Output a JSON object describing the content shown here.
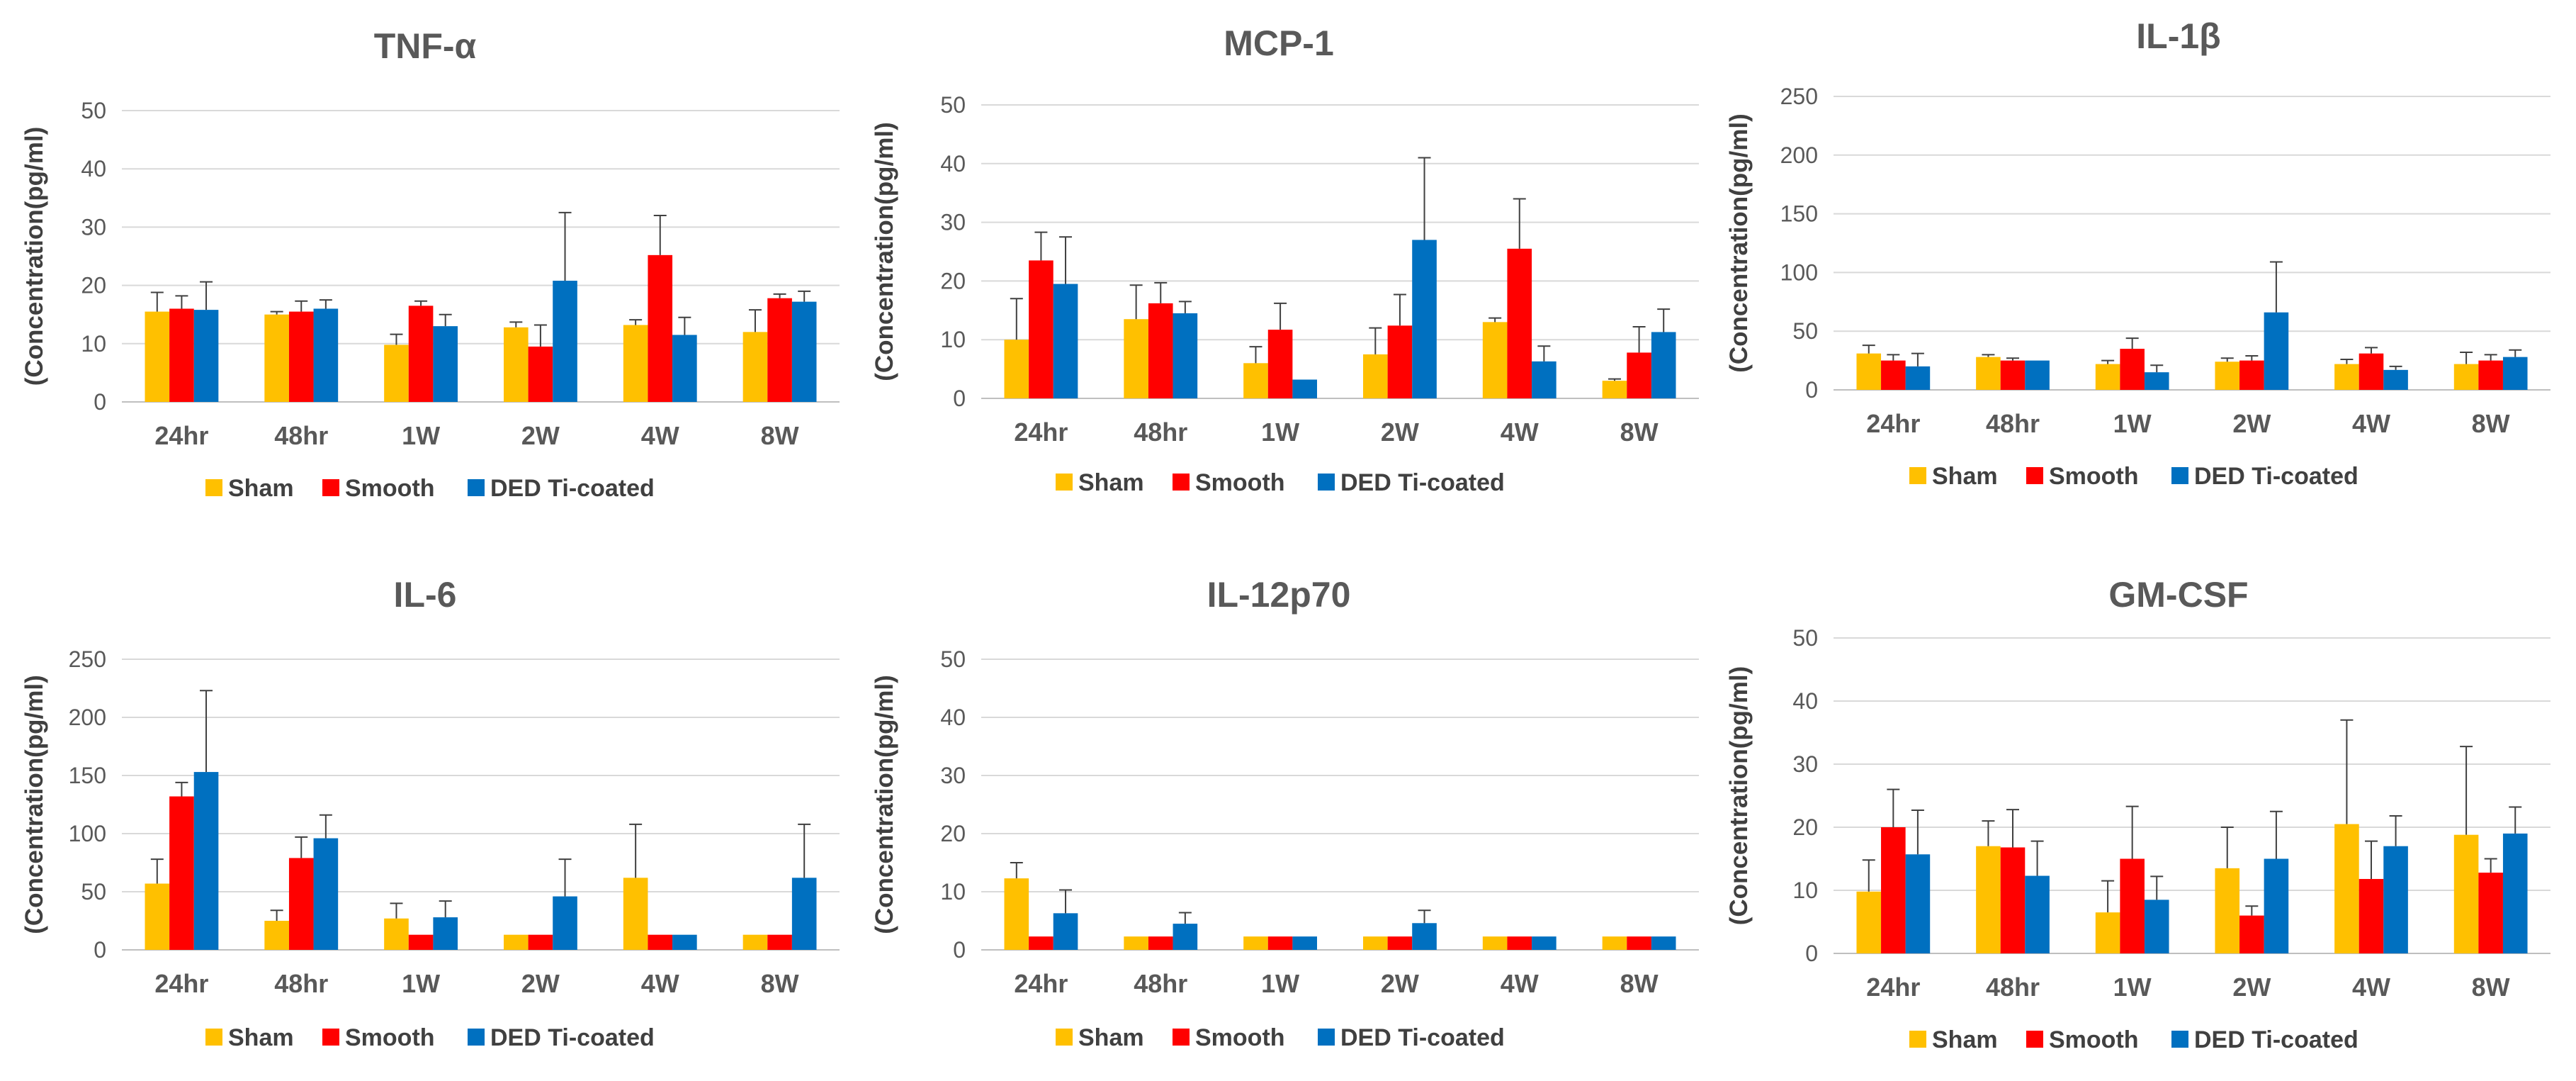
{
  "chart_data": [
    {
      "type": "bar",
      "title": "TNF-α",
      "ylabel": "(Concentration(pg/ml)",
      "xlabel": "",
      "ylim": [
        0,
        50
      ],
      "yticks": [
        0,
        10,
        20,
        30,
        40,
        50
      ],
      "grid": true,
      "legend_position": "bottom",
      "categories": [
        "24hr",
        "48hr",
        "1W",
        "2W",
        "4W",
        "8W"
      ],
      "series": [
        {
          "name": "Sham",
          "color": "#FFC000",
          "values": [
            15.5,
            15,
            9.8,
            12.8,
            13.2,
            12
          ],
          "errors": [
            3.3,
            0.5,
            1.8,
            0.9,
            0.9,
            3.8
          ]
        },
        {
          "name": "Smooth",
          "color": "#FF0000",
          "values": [
            16,
            15.5,
            16.5,
            9.5,
            25.2,
            17.8
          ],
          "errors": [
            2.2,
            1.8,
            0.8,
            3.7,
            6.8,
            0.7
          ]
        },
        {
          "name": "DED Ti-coated",
          "color": "#0070C0",
          "values": [
            15.8,
            16,
            13,
            20.8,
            11.5,
            17.2
          ],
          "errors": [
            4.8,
            1.5,
            2,
            11.7,
            3,
            1.8
          ]
        }
      ]
    },
    {
      "type": "bar",
      "title": "MCP-1",
      "ylabel": "(Concentration(pg/ml)",
      "xlabel": "",
      "ylim": [
        0,
        50
      ],
      "yticks": [
        0,
        10,
        20,
        30,
        40,
        50
      ],
      "grid": true,
      "legend_position": "bottom",
      "categories": [
        "24hr",
        "48hr",
        "1W",
        "2W",
        "4W",
        "8W"
      ],
      "series": [
        {
          "name": "Sham",
          "color": "#FFC000",
          "values": [
            10,
            13.5,
            6,
            7.5,
            13,
            3
          ],
          "errors": [
            7,
            5.8,
            2.8,
            4.5,
            0.7,
            0.3
          ]
        },
        {
          "name": "Smooth",
          "color": "#FF0000",
          "values": [
            23.5,
            16.2,
            11.7,
            12.4,
            25.5,
            7.8
          ],
          "errors": [
            4.8,
            3.5,
            4.5,
            5.3,
            8.5,
            4.4
          ]
        },
        {
          "name": "DED Ti-coated",
          "color": "#0070C0",
          "values": [
            19.5,
            14.5,
            3.2,
            27,
            6.3,
            11.3
          ],
          "errors": [
            8,
            2,
            0,
            14,
            2.6,
            3.9
          ]
        }
      ]
    },
    {
      "type": "bar",
      "title": "IL-1β",
      "ylabel": "(Concentration(pg/ml)",
      "xlabel": "",
      "ylim": [
        0,
        250
      ],
      "yticks": [
        0,
        50,
        100,
        150,
        200,
        250
      ],
      "grid": true,
      "legend_position": "bottom",
      "categories": [
        "24hr",
        "48hr",
        "1W",
        "2W",
        "4W",
        "8W"
      ],
      "series": [
        {
          "name": "Sham",
          "color": "#FFC000",
          "values": [
            31,
            28,
            22,
            24,
            22,
            22
          ],
          "errors": [
            7,
            2,
            3,
            3,
            4,
            10
          ]
        },
        {
          "name": "Smooth",
          "color": "#FF0000",
          "values": [
            25,
            25,
            35,
            25,
            31,
            25
          ],
          "errors": [
            5,
            2,
            9,
            4,
            5,
            5
          ]
        },
        {
          "name": "DED Ti-coated",
          "color": "#0070C0",
          "values": [
            20,
            25,
            15,
            66,
            17,
            28
          ],
          "errors": [
            11,
            0,
            6,
            43,
            3,
            6
          ]
        }
      ]
    },
    {
      "type": "bar",
      "title": "IL-6",
      "ylabel": "(Concentration(pg/ml)",
      "xlabel": "",
      "ylim": [
        0,
        250
      ],
      "yticks": [
        0,
        50,
        100,
        150,
        200,
        250
      ],
      "grid": true,
      "legend_position": "bottom",
      "categories": [
        "24hr",
        "48hr",
        "1W",
        "2W",
        "4W",
        "8W"
      ],
      "series": [
        {
          "name": "Sham",
          "color": "#FFC000",
          "values": [
            57,
            25,
            27,
            13,
            62,
            13
          ],
          "errors": [
            21,
            9,
            13,
            0,
            46,
            0
          ]
        },
        {
          "name": "Smooth",
          "color": "#FF0000",
          "values": [
            132,
            79,
            13,
            13,
            13,
            13
          ],
          "errors": [
            12,
            18,
            0,
            0,
            0,
            0
          ]
        },
        {
          "name": "DED Ti-coated",
          "color": "#0070C0",
          "values": [
            153,
            96,
            28,
            46,
            13,
            62
          ],
          "errors": [
            70,
            20,
            14,
            32,
            0,
            46
          ]
        }
      ]
    },
    {
      "type": "bar",
      "title": "IL-12p70",
      "ylabel": "(Concentration(pg/ml)",
      "xlabel": "",
      "ylim": [
        0,
        50
      ],
      "yticks": [
        0,
        10,
        20,
        30,
        40,
        50
      ],
      "grid": true,
      "legend_position": "bottom",
      "categories": [
        "24hr",
        "48hr",
        "1W",
        "2W",
        "4W",
        "8W"
      ],
      "series": [
        {
          "name": "Sham",
          "color": "#FFC000",
          "values": [
            12.3,
            2.3,
            2.3,
            2.3,
            2.3,
            2.3
          ],
          "errors": [
            2.7,
            0,
            0,
            0,
            0,
            0
          ]
        },
        {
          "name": "Smooth",
          "color": "#FF0000",
          "values": [
            2.3,
            2.3,
            2.3,
            2.3,
            2.3,
            2.3
          ],
          "errors": [
            0,
            0,
            0,
            0,
            0,
            0
          ]
        },
        {
          "name": "DED Ti-coated",
          "color": "#0070C0",
          "values": [
            6.3,
            4.5,
            2.3,
            4.6,
            2.3,
            2.3
          ],
          "errors": [
            4,
            1.9,
            0,
            2.2,
            0,
            0
          ]
        }
      ]
    },
    {
      "type": "bar",
      "title": "GM-CSF",
      "ylabel": "(Concentration(pg/ml)",
      "xlabel": "",
      "ylim": [
        0,
        50
      ],
      "yticks": [
        0,
        10,
        20,
        30,
        40,
        50
      ],
      "grid": true,
      "legend_position": "bottom",
      "categories": [
        "24hr",
        "48hr",
        "1W",
        "2W",
        "4W",
        "8W"
      ],
      "series": [
        {
          "name": "Sham",
          "color": "#FFC000",
          "values": [
            9.8,
            17,
            6.5,
            13.5,
            20.5,
            18.8
          ],
          "errors": [
            5,
            4,
            5,
            6.5,
            16.5,
            14
          ]
        },
        {
          "name": "Smooth",
          "color": "#FF0000",
          "values": [
            20,
            16.8,
            15,
            6,
            11.8,
            12.8
          ],
          "errors": [
            6,
            6,
            8.3,
            1.5,
            6,
            2.2
          ]
        },
        {
          "name": "DED Ti-coated",
          "color": "#0070C0",
          "values": [
            15.7,
            12.3,
            8.5,
            15,
            17,
            19
          ],
          "errors": [
            7,
            5.5,
            3.7,
            7.5,
            4.8,
            4.2
          ]
        }
      ]
    }
  ]
}
